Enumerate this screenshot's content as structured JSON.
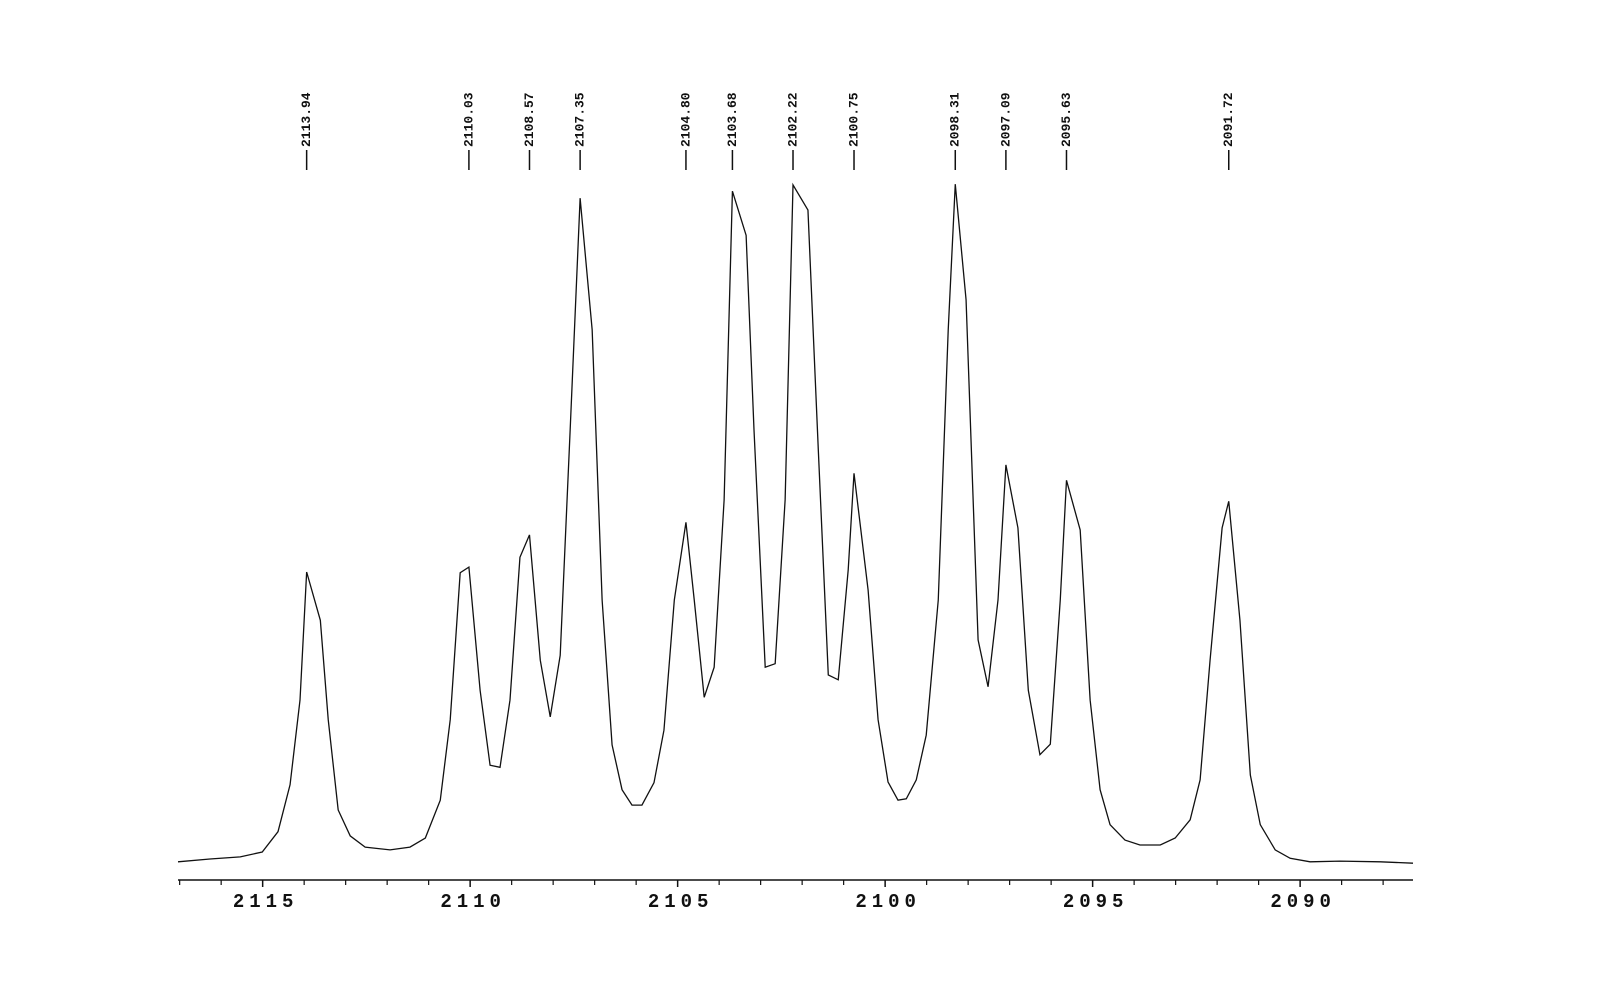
{
  "chart_data": {
    "type": "line",
    "x": [
      2117.04,
      2116.27,
      2115.54,
      2115.01,
      2114.63,
      2114.34,
      2114.1,
      2113.94,
      2113.61,
      2113.42,
      2113.18,
      2112.89,
      2112.53,
      2111.93,
      2111.45,
      2111.08,
      2110.72,
      2110.48,
      2110.24,
      2110.03,
      2109.76,
      2109.52,
      2109.28,
      2109.04,
      2108.8,
      2108.57,
      2108.31,
      2108.07,
      2107.83,
      2107.59,
      2107.35,
      2107.06,
      2106.82,
      2106.58,
      2106.34,
      2106.1,
      2105.86,
      2105.57,
      2105.33,
      2105.08,
      2104.8,
      2104.6,
      2104.36,
      2104.12,
      2103.88,
      2103.68,
      2103.35,
      2103.16,
      2102.89,
      2102.65,
      2102.41,
      2102.22,
      2101.86,
      2101.61,
      2101.37,
      2101.13,
      2100.89,
      2100.75,
      2100.41,
      2100.17,
      2099.93,
      2099.69,
      2099.49,
      2099.25,
      2099.01,
      2098.72,
      2098.48,
      2098.31,
      2098.05,
      2097.76,
      2097.52,
      2097.28,
      2097.09,
      2096.8,
      2096.55,
      2096.27,
      2096.02,
      2095.78,
      2095.63,
      2095.3,
      2095.06,
      2094.82,
      2094.58,
      2094.22,
      2093.86,
      2093.37,
      2093.01,
      2092.65,
      2092.41,
      2092.17,
      2091.88,
      2091.72,
      2091.45,
      2091.2,
      2090.96,
      2090.6,
      2090.24,
      2089.76,
      2089.04,
      2088.07,
      2087.28
    ],
    "values": [
      2.6,
      3.0,
      3.3,
      4.0,
      6.9,
      13.6,
      25.7,
      44.0,
      37.1,
      22.9,
      10.0,
      6.3,
      4.7,
      4.3,
      4.7,
      6.0,
      11.4,
      22.9,
      43.9,
      44.7,
      27.1,
      16.4,
      16.1,
      25.7,
      46.1,
      49.3,
      31.4,
      23.3,
      32.1,
      64.3,
      97.4,
      78.6,
      40.0,
      19.3,
      12.9,
      10.7,
      10.7,
      13.9,
      21.4,
      40.0,
      51.1,
      40.0,
      26.1,
      30.4,
      54.3,
      98.4,
      92.1,
      64.3,
      30.4,
      30.9,
      54.3,
      99.3,
      95.7,
      61.4,
      29.3,
      28.6,
      44.3,
      58.1,
      41.4,
      22.9,
      14.0,
      11.4,
      11.6,
      14.3,
      20.7,
      40.0,
      78.6,
      99.4,
      82.9,
      34.3,
      27.6,
      40.0,
      59.3,
      50.3,
      27.1,
      17.9,
      19.4,
      40.0,
      57.1,
      50.0,
      25.7,
      12.9,
      7.9,
      5.7,
      5.0,
      5.0,
      6.0,
      8.6,
      14.3,
      31.4,
      50.3,
      54.1,
      37.1,
      15.0,
      7.9,
      4.3,
      3.1,
      2.6,
      2.7,
      2.6,
      2.4
    ],
    "color": "#111111",
    "xlim": [
      2117.04,
      2087.28
    ],
    "ylim": [
      0,
      100
    ],
    "xticks": [
      2115,
      2110,
      2105,
      2100,
      2095,
      2090
    ],
    "xminor_ticks": [
      2117,
      2116,
      2114,
      2113,
      2112,
      2111,
      2109,
      2108,
      2107,
      2106,
      2104,
      2103,
      2102,
      2101,
      2099,
      2098,
      2097,
      2096,
      2094,
      2093,
      2092,
      2091,
      2089,
      2088
    ],
    "peaks": [
      2113.94,
      2110.03,
      2108.57,
      2107.35,
      {
        "value": 2104.8,
        "label": "2104.80"
      },
      2103.68,
      2102.22,
      2100.75,
      2098.31,
      2097.09,
      2095.63,
      2091.72
    ]
  }
}
